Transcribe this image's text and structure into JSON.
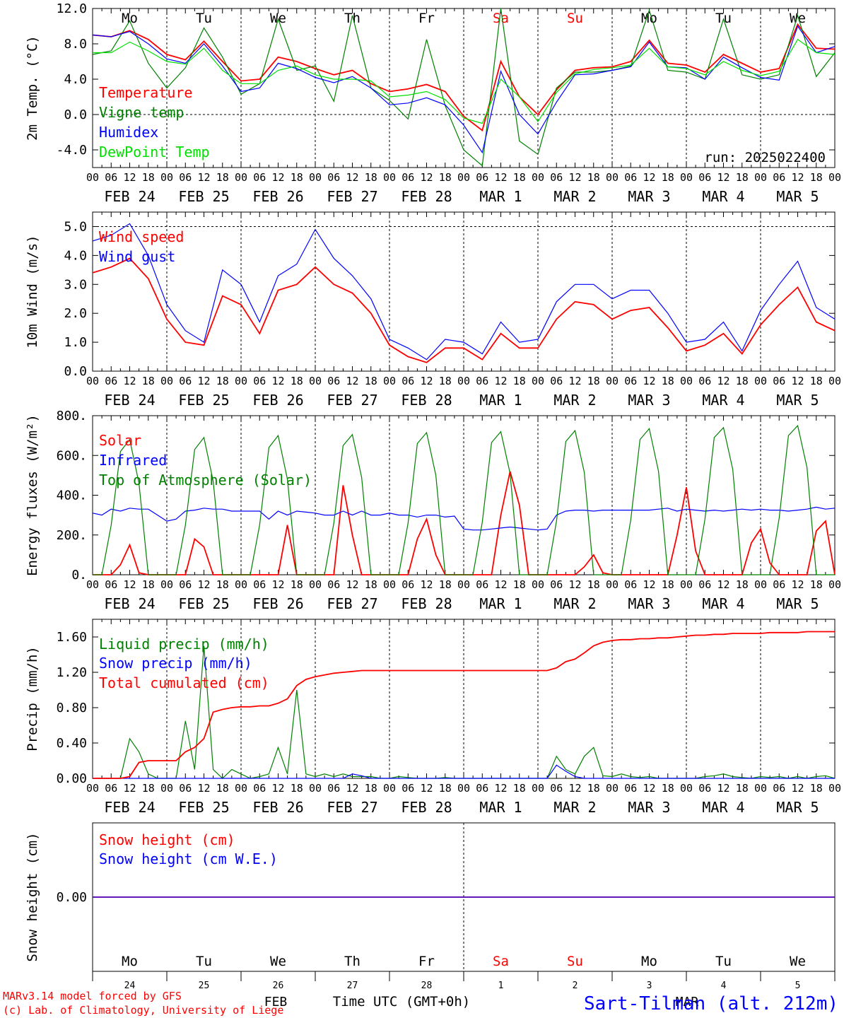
{
  "footer": {
    "model": "MARv3.14 model forced by GFS",
    "lab": "(c) Lab. of Climatology, University of Liege",
    "month_feb": "FEB",
    "month_mar": "MAR",
    "time_label": "Time UTC (GMT+0h)",
    "station": "Sart-Tilman (alt. 212m)"
  },
  "colors": {
    "red": "#ff0000",
    "green": "#008000",
    "blue": "#0000ff",
    "lightgreen": "#00e000",
    "weekend": "#ff0000"
  },
  "days": [
    "Mo",
    "Tu",
    "We",
    "Th",
    "Fr",
    "Sa",
    "Su",
    "Mo",
    "Tu",
    "We"
  ],
  "weekend_days": [
    5,
    6
  ],
  "day_numbers": [
    "24",
    "25",
    "26",
    "27",
    "28",
    "1",
    "2",
    "3",
    "4",
    "5"
  ],
  "date_labels": [
    "FEB 24",
    "FEB 25",
    "FEB 26",
    "FEB 27",
    "FEB 28",
    "MAR  1",
    "MAR  2",
    "MAR  3",
    "MAR  4",
    "MAR  5"
  ],
  "hour_labels": [
    "00",
    "06",
    "12",
    "18"
  ],
  "hour_label_end": "00",
  "chart_data": [
    {
      "type": "line",
      "ylabel": "2m Temp. (°C)",
      "ylim": [
        -6,
        12
      ],
      "yticks": [
        -4,
        0,
        4,
        8,
        12
      ],
      "yticklabels": [
        "-4.0",
        "0.0",
        "4.0",
        "8.0",
        "12.0"
      ],
      "refline": 0,
      "annotation": "run: 2025022400",
      "x_hours": [
        0,
        6,
        12,
        18,
        24,
        30,
        36,
        42,
        48,
        54,
        60,
        66,
        72,
        78,
        84,
        90,
        96,
        102,
        108,
        114,
        120,
        126,
        132,
        138,
        144,
        150,
        156,
        162,
        168,
        174,
        180,
        186,
        192,
        198,
        204,
        210,
        216,
        222,
        228,
        234,
        240
      ],
      "series": [
        {
          "name": "Temperature",
          "color": "red",
          "values": [
            9.0,
            8.8,
            9.5,
            8.5,
            6.8,
            6.2,
            8.3,
            6.0,
            3.8,
            4.0,
            6.5,
            6.0,
            5.2,
            4.5,
            5.0,
            3.5,
            2.6,
            2.9,
            3.4,
            2.6,
            -0.2,
            -1.8,
            6.0,
            2.0,
            0.0,
            2.8,
            5.0,
            5.3,
            5.4,
            6.0,
            8.4,
            5.8,
            5.6,
            4.8,
            6.8,
            5.8,
            4.8,
            5.2,
            10.2,
            7.5,
            7.4
          ]
        },
        {
          "name": "Vigne temp",
          "color": "green",
          "values": [
            6.8,
            7.2,
            10.6,
            5.8,
            3.0,
            5.3,
            9.8,
            6.5,
            2.3,
            3.5,
            10.8,
            5.0,
            5.5,
            1.5,
            11.2,
            3.0,
            1.6,
            -0.5,
            8.5,
            1.0,
            -4.0,
            -5.8,
            12.0,
            -3.0,
            -4.5,
            3.0,
            4.8,
            4.8,
            5.0,
            5.5,
            11.8,
            5.0,
            4.8,
            4.0,
            10.8,
            4.5,
            4.0,
            4.5,
            11.2,
            4.3,
            7.0
          ]
        },
        {
          "name": "Humidex",
          "color": "blue",
          "values": [
            9.0,
            8.8,
            9.4,
            8.0,
            6.3,
            5.8,
            8.0,
            5.5,
            2.6,
            3.0,
            5.8,
            5.2,
            4.2,
            3.6,
            4.3,
            3.0,
            1.1,
            1.3,
            1.9,
            1.1,
            -1.2,
            -4.3,
            4.9,
            0.0,
            -2.2,
            1.4,
            4.5,
            4.6,
            5.0,
            5.4,
            8.2,
            5.4,
            5.3,
            4.0,
            6.5,
            5.3,
            4.2,
            3.9,
            10.0,
            7.0,
            7.7
          ]
        },
        {
          "name": "DewPoint Temp",
          "color": "lightgreen",
          "values": [
            7.0,
            7.0,
            8.2,
            7.2,
            6.0,
            5.7,
            7.5,
            5.0,
            3.5,
            3.5,
            5.0,
            5.5,
            4.5,
            4.0,
            4.0,
            3.8,
            2.0,
            2.2,
            2.6,
            1.7,
            -0.4,
            -1.0,
            4.0,
            2.0,
            -0.8,
            2.5,
            4.6,
            5.1,
            5.3,
            5.6,
            7.5,
            5.4,
            5.2,
            4.5,
            6.0,
            5.0,
            4.4,
            4.9,
            8.5,
            7.0,
            6.8
          ]
        }
      ]
    },
    {
      "type": "line",
      "ylabel": "10m Wind (m/s)",
      "ylim": [
        0,
        5.5
      ],
      "yticks": [
        0,
        1,
        2,
        3,
        4,
        5
      ],
      "yticklabels": [
        "0.0",
        "1.0",
        "2.0",
        "3.0",
        "4.0",
        "5.0"
      ],
      "refline": 5,
      "x_hours": [
        0,
        6,
        12,
        18,
        24,
        30,
        36,
        42,
        48,
        54,
        60,
        66,
        72,
        78,
        84,
        90,
        96,
        102,
        108,
        114,
        120,
        126,
        132,
        138,
        144,
        150,
        156,
        162,
        168,
        174,
        180,
        186,
        192,
        198,
        204,
        210,
        216,
        222,
        228,
        234,
        240
      ],
      "series": [
        {
          "name": "Wind speed",
          "color": "red",
          "values": [
            3.4,
            3.6,
            3.9,
            3.2,
            1.8,
            1.0,
            0.9,
            2.6,
            2.3,
            1.3,
            2.8,
            3.0,
            3.6,
            3.0,
            2.7,
            2.0,
            0.9,
            0.5,
            0.3,
            0.8,
            0.8,
            0.4,
            1.3,
            0.8,
            0.8,
            1.8,
            2.4,
            2.3,
            1.8,
            2.1,
            2.2,
            1.5,
            0.7,
            0.9,
            1.3,
            0.6,
            1.6,
            2.3,
            2.9,
            1.7,
            1.4
          ]
        },
        {
          "name": "Wind gust",
          "color": "blue",
          "values": [
            4.5,
            4.7,
            5.1,
            4.0,
            2.3,
            1.4,
            1.0,
            3.5,
            3.0,
            1.7,
            3.3,
            3.7,
            4.9,
            3.9,
            3.3,
            2.5,
            1.1,
            0.8,
            0.4,
            1.1,
            1.0,
            0.6,
            1.7,
            1.0,
            1.1,
            2.4,
            3.0,
            3.0,
            2.5,
            2.8,
            2.8,
            2.0,
            1.0,
            1.1,
            1.7,
            0.7,
            2.1,
            3.0,
            3.8,
            2.2,
            1.8
          ]
        }
      ]
    },
    {
      "type": "line",
      "ylabel": "Energy fluxes (W/m²)",
      "ylim": [
        0,
        800
      ],
      "yticks": [
        0,
        200,
        400,
        600,
        800
      ],
      "yticklabels": [
        "0.",
        "200.",
        "400.",
        "600.",
        "800."
      ],
      "x_hours": [
        0,
        3,
        6,
        9,
        12,
        15,
        18,
        21,
        24,
        27,
        30,
        33,
        36,
        39,
        42,
        45,
        48,
        51,
        54,
        57,
        60,
        63,
        66,
        69,
        72,
        75,
        78,
        81,
        84,
        87,
        90,
        93,
        96,
        99,
        102,
        105,
        108,
        111,
        114,
        117,
        120,
        123,
        126,
        129,
        132,
        135,
        138,
        141,
        144,
        147,
        150,
        153,
        156,
        159,
        162,
        165,
        168,
        171,
        174,
        177,
        180,
        183,
        186,
        189,
        192,
        195,
        198,
        201,
        204,
        207,
        210,
        213,
        216,
        219,
        222,
        225,
        228,
        231,
        234,
        237,
        240
      ],
      "series": [
        {
          "name": "Solar",
          "color": "red",
          "values": [
            0,
            0,
            0,
            50,
            150,
            10,
            0,
            0,
            0,
            0,
            0,
            180,
            140,
            0,
            0,
            0,
            0,
            0,
            0,
            0,
            0,
            250,
            0,
            0,
            0,
            0,
            0,
            450,
            200,
            0,
            0,
            0,
            0,
            0,
            0,
            180,
            280,
            100,
            0,
            0,
            0,
            0,
            0,
            0,
            300,
            520,
            350,
            0,
            0,
            0,
            0,
            0,
            0,
            40,
            100,
            10,
            0,
            0,
            0,
            0,
            0,
            0,
            0,
            200,
            440,
            120,
            0,
            0,
            0,
            0,
            0,
            160,
            230,
            60,
            0,
            0,
            0,
            0,
            220,
            270,
            0
          ]
        },
        {
          "name": "Infrared",
          "color": "blue",
          "values": [
            310,
            300,
            330,
            320,
            335,
            330,
            330,
            300,
            270,
            280,
            320,
            325,
            335,
            330,
            330,
            320,
            320,
            320,
            320,
            280,
            320,
            300,
            320,
            315,
            310,
            300,
            300,
            320,
            300,
            320,
            300,
            300,
            310,
            300,
            300,
            290,
            300,
            300,
            290,
            295,
            230,
            225,
            225,
            230,
            235,
            240,
            235,
            230,
            225,
            230,
            300,
            320,
            325,
            325,
            320,
            325,
            325,
            325,
            325,
            325,
            325,
            330,
            335,
            320,
            330,
            325,
            320,
            325,
            320,
            325,
            330,
            325,
            330,
            325,
            325,
            320,
            325,
            330,
            340,
            330,
            335
          ]
        },
        {
          "name": "Top of Atmosphere (Solar)",
          "color": "green",
          "values": [
            0,
            0,
            250,
            620,
            680,
            460,
            0,
            0,
            0,
            0,
            250,
            630,
            690,
            470,
            0,
            0,
            0,
            0,
            250,
            640,
            700,
            480,
            0,
            0,
            0,
            0,
            260,
            650,
            705,
            490,
            0,
            0,
            0,
            0,
            260,
            660,
            715,
            500,
            0,
            0,
            0,
            0,
            265,
            665,
            720,
            510,
            0,
            0,
            0,
            0,
            270,
            670,
            725,
            515,
            0,
            0,
            0,
            0,
            275,
            680,
            735,
            520,
            0,
            0,
            0,
            0,
            280,
            690,
            740,
            530,
            0,
            0,
            0,
            0,
            285,
            700,
            750,
            540,
            0,
            0,
            0
          ]
        }
      ]
    },
    {
      "type": "line",
      "ylabel": "Precip (mm/h)",
      "ylim": [
        0,
        1.8
      ],
      "yticks": [
        0,
        0.4,
        0.8,
        1.2,
        1.6
      ],
      "yticklabels": [
        "0.00",
        "0.40",
        "0.80",
        "1.20",
        "1.60"
      ],
      "x_hours": [
        0,
        3,
        6,
        9,
        12,
        15,
        18,
        21,
        24,
        27,
        30,
        33,
        36,
        39,
        42,
        45,
        48,
        51,
        54,
        57,
        60,
        63,
        66,
        69,
        72,
        75,
        78,
        81,
        84,
        87,
        90,
        93,
        96,
        99,
        102,
        105,
        108,
        111,
        114,
        117,
        120,
        123,
        126,
        129,
        132,
        135,
        138,
        141,
        144,
        147,
        150,
        153,
        156,
        159,
        162,
        165,
        168,
        171,
        174,
        177,
        180,
        183,
        186,
        189,
        192,
        195,
        198,
        201,
        204,
        207,
        210,
        213,
        216,
        219,
        222,
        225,
        228,
        231,
        234,
        237,
        240
      ],
      "series": [
        {
          "name": "Liquid precip (mm/h)",
          "color": "green",
          "values": [
            0,
            0,
            0,
            0,
            0.45,
            0.3,
            0.05,
            0,
            0,
            0,
            0.65,
            0.1,
            1.5,
            0.1,
            0,
            0.1,
            0.05,
            0,
            0.02,
            0.05,
            0.35,
            0.05,
            1.0,
            0.05,
            0.02,
            0.05,
            0.02,
            0.05,
            0.02,
            0.02,
            0.02,
            0,
            0,
            0.02,
            0.01,
            0,
            0,
            0,
            0.01,
            0,
            0,
            0,
            0,
            0,
            0,
            0,
            0,
            0,
            0,
            0,
            0.25,
            0.1,
            0.05,
            0.25,
            0.35,
            0.03,
            0.02,
            0.05,
            0.02,
            0.01,
            0.02,
            0,
            0,
            0,
            0,
            0,
            0.02,
            0.03,
            0.05,
            0.02,
            0.01,
            0,
            0.02,
            0.01,
            0.02,
            0,
            0.02,
            0,
            0.02,
            0.03,
            0
          ]
        },
        {
          "name": "Snow precip (mm/h)",
          "color": "blue",
          "values": [
            0,
            0,
            0,
            0,
            0,
            0,
            0,
            0,
            0,
            0,
            0,
            0,
            0,
            0,
            0,
            0,
            0,
            0,
            0,
            0,
            0,
            0,
            0,
            0,
            0,
            0,
            0,
            0,
            0.05,
            0.03,
            0,
            0,
            0,
            0,
            0,
            0,
            0,
            0,
            0,
            0,
            0,
            0,
            0,
            0,
            0,
            0,
            0,
            0,
            0,
            0,
            0.15,
            0.08,
            0.02,
            0,
            0,
            0,
            0,
            0,
            0,
            0,
            0,
            0,
            0,
            0,
            0,
            0,
            0,
            0,
            0,
            0,
            0,
            0,
            0,
            0,
            0,
            0,
            0,
            0,
            0,
            0,
            0
          ]
        },
        {
          "name": "Total cumulated (cm)",
          "color": "red",
          "values": [
            0,
            0,
            0,
            0,
            0.02,
            0.18,
            0.2,
            0.2,
            0.2,
            0.2,
            0.3,
            0.35,
            0.45,
            0.75,
            0.78,
            0.8,
            0.81,
            0.81,
            0.82,
            0.82,
            0.85,
            0.9,
            1.05,
            1.12,
            1.15,
            1.17,
            1.19,
            1.2,
            1.21,
            1.22,
            1.22,
            1.22,
            1.22,
            1.22,
            1.22,
            1.22,
            1.22,
            1.22,
            1.22,
            1.22,
            1.22,
            1.22,
            1.22,
            1.22,
            1.22,
            1.22,
            1.22,
            1.22,
            1.22,
            1.22,
            1.25,
            1.32,
            1.35,
            1.42,
            1.5,
            1.54,
            1.56,
            1.57,
            1.57,
            1.58,
            1.58,
            1.59,
            1.59,
            1.6,
            1.61,
            1.62,
            1.62,
            1.63,
            1.63,
            1.64,
            1.64,
            1.64,
            1.64,
            1.65,
            1.65,
            1.65,
            1.65,
            1.66,
            1.66,
            1.66,
            1.66
          ]
        }
      ]
    },
    {
      "type": "line",
      "ylabel": "Snow height (cm)",
      "ylim": [
        -1,
        1
      ],
      "yticks": [
        0
      ],
      "yticklabels": [
        "0.00"
      ],
      "x_hours": [
        0,
        240
      ],
      "series": [
        {
          "name": "Snow height (cm)",
          "color": "red",
          "values": [
            0,
            0
          ]
        },
        {
          "name": "Snow height (cm W.E.)",
          "color": "blue",
          "values": [
            0,
            0
          ]
        }
      ]
    }
  ]
}
